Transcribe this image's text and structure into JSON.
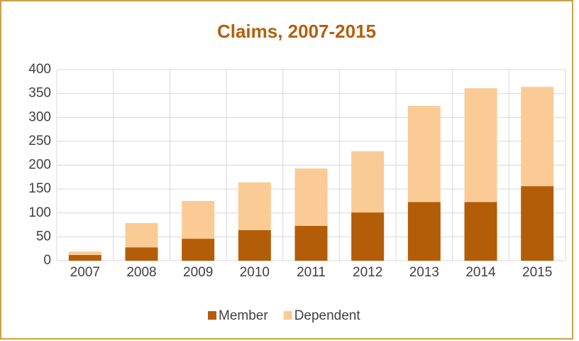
{
  "chart_data": {
    "type": "bar",
    "stacked": true,
    "title": "Claims, 2007-2015",
    "categories": [
      "2007",
      "2008",
      "2009",
      "2010",
      "2011",
      "2012",
      "2013",
      "2014",
      "2015"
    ],
    "series": [
      {
        "name": "Member",
        "color": "#b45d08",
        "values": [
          12,
          28,
          46,
          64,
          73,
          101,
          123,
          123,
          156
        ]
      },
      {
        "name": "Dependent",
        "color": "#fbcb95",
        "values": [
          7,
          51,
          79,
          100,
          120,
          128,
          201,
          238,
          208
        ]
      }
    ],
    "ylim": [
      0,
      400
    ],
    "yticks": [
      0,
      50,
      100,
      150,
      200,
      250,
      300,
      350,
      400
    ],
    "grid": true,
    "legend": "bottom"
  }
}
